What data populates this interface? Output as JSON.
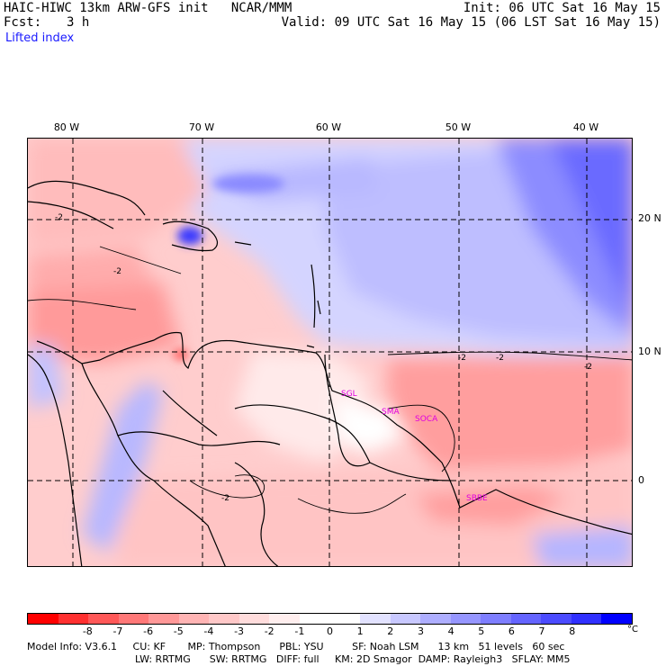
{
  "header": {
    "title": "HAIC-HIWC 13km ARW-GFS init   NCAR/MMM",
    "init": "Init: 06 UTC Sat 16 May 15",
    "fcst_label": "Fcst:",
    "fcst_value": "3 h",
    "valid": "Valid: 09 UTC Sat 16 May 15 (06 LST Sat 16 May 15)",
    "field": "Lifted index"
  },
  "map": {
    "lon_labels": [
      "80 W",
      "70 W",
      "60 W",
      "50 W",
      "40 W"
    ],
    "lat_labels": [
      "20 N",
      "10 N",
      "0"
    ],
    "contour_label": "-2",
    "stations": [
      "SGL",
      "SMA",
      "SOCA",
      "SBBE"
    ]
  },
  "colorbar": {
    "colors": [
      "#ff0000",
      "#ff3030",
      "#ff5858",
      "#ff7878",
      "#ff9898",
      "#ffb4b4",
      "#ffc8c8",
      "#ffdcdc",
      "#ffeeee",
      "#ffffff",
      "#ffffff",
      "#e2e2ff",
      "#c8c8ff",
      "#aeaeff",
      "#9696ff",
      "#7e7eff",
      "#6464ff",
      "#4b4bff",
      "#3030ff",
      "#0000ff"
    ],
    "tick_labels": [
      "-8",
      "-7",
      "-6",
      "-5",
      "-4",
      "-3",
      "-2",
      "-1",
      "0",
      "1",
      "2",
      "3",
      "4",
      "5",
      "6",
      "7",
      "8"
    ],
    "unit": "°C"
  },
  "footer": {
    "line1": "Model Info: V3.6.1     CU: KF       MP: Thompson      PBL: YSU         SF: Noah LSM      13 km   51 levels   60 sec",
    "line2": "LW: RRTMG      SW: RRTMG   DIFF: full     KM: 2D Smagor  DAMP: Rayleigh3   SFLAY: MM5"
  }
}
